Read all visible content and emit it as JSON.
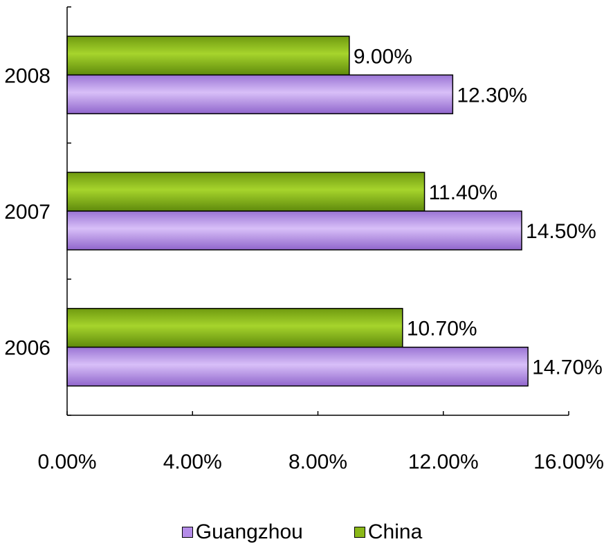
{
  "chart_data": {
    "type": "bar",
    "orientation": "horizontal",
    "categories": [
      "2006",
      "2007",
      "2008"
    ],
    "series": [
      {
        "name": "Guangzhou",
        "values": [
          14.7,
          14.5,
          12.3
        ],
        "labels": [
          "14.70%",
          "14.50%",
          "12.30%"
        ],
        "color": "#b48ce8"
      },
      {
        "name": "China",
        "values": [
          10.7,
          11.4,
          9.0
        ],
        "labels": [
          "10.70%",
          "11.40%",
          "9.00%"
        ],
        "color": "#8ab818"
      }
    ],
    "xlim": [
      0,
      16
    ],
    "x_ticks": [
      "0.00%",
      "4.00%",
      "8.00%",
      "12.00%",
      "16.00%"
    ],
    "grid": false,
    "legend_position": "bottom"
  }
}
